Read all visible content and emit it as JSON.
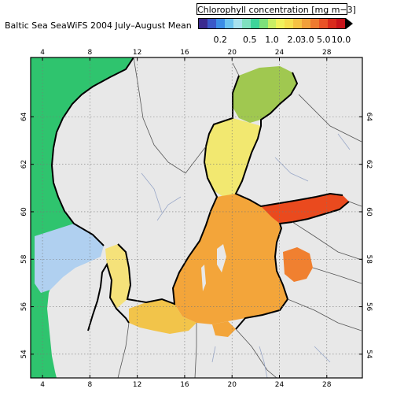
{
  "title": "Baltic Sea SeaWiFS 2004 July–August Mean",
  "colorbar": {
    "title": "Chlorophyll concentration [mg m−3]",
    "colors": [
      "#3b2a8f",
      "#3a58c8",
      "#3b8de6",
      "#6cc4ef",
      "#a7e2ef",
      "#7fe0c0",
      "#3ed49a",
      "#7ee07a",
      "#c9ee64",
      "#f1f25c",
      "#f7df4f",
      "#f6c243",
      "#f2a03a",
      "#ee7a2f",
      "#e95226",
      "#d92b1c",
      "#c8141a"
    ],
    "ticks": [
      {
        "label": "0.2",
        "value": 0.2
      },
      {
        "label": "0.5",
        "value": 0.5
      },
      {
        "label": "1.0",
        "value": 1.0
      },
      {
        "label": "2.0",
        "value": 2.0
      },
      {
        "label": "3.0",
        "value": 3.0
      },
      {
        "label": "5.0",
        "value": 5.0
      },
      {
        "label": "10.0",
        "value": 10.0
      }
    ]
  },
  "map": {
    "lon_range": [
      3,
      31
    ],
    "lat_range": [
      53,
      66.5
    ],
    "lon_ticks": [
      "4",
      "8",
      "12",
      "16",
      "20",
      "24",
      "28"
    ],
    "lon_values": [
      4,
      8,
      12,
      16,
      20,
      24,
      28
    ],
    "lat_ticks": [
      "54",
      "56",
      "58",
      "60",
      "62",
      "64"
    ],
    "lat_values": [
      54,
      56,
      58,
      60,
      62,
      64
    ],
    "colors": {
      "land": "#e8e8e8",
      "coast": "#000000",
      "north_sea": "#2fc46e",
      "skagerrak": "#b0d0f0",
      "kattegat": "#f5e27a",
      "bothnian_bay": "#a0c850",
      "bothnian_sea": "#f2e870",
      "baltic_proper": "#f3a53a",
      "gulf_finland": "#ea4a1e",
      "gulf_riga": "#f08030",
      "southern_baltic": "#f2c44a"
    }
  }
}
